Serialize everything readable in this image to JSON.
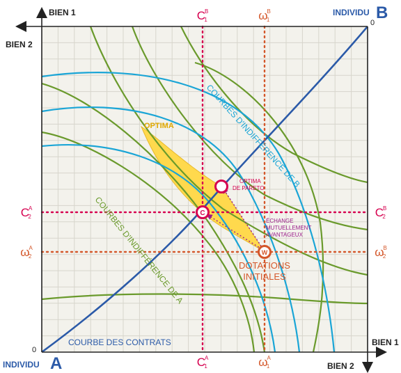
{
  "axes": {
    "a_good1": "BIEN 1",
    "a_good2": "BIEN 2",
    "b_good1": "BIEN 1",
    "b_good2": "BIEN 2",
    "origin_a": "0",
    "origin_b": "0"
  },
  "individuals": {
    "a_label": "INDIVIDU",
    "a_letter": "A",
    "b_label": "INDIVIDU",
    "b_letter": "B"
  },
  "curves": {
    "contract": "COURBE DES CONTRATS",
    "indiff_a": "COURBES D'INDIFFÉRENCE DE A",
    "indiff_b": "COURBES D'INDIFFÉRENCE DE B"
  },
  "regions": {
    "optima": "OPTIMA"
  },
  "points": {
    "pareto_line1": "OPTIMA",
    "pareto_line2": "DE PARETO",
    "c_letter": "C",
    "w_letter": "W",
    "dotations_line1": "DOTATIONS",
    "dotations_line2": "INITIALES",
    "exchange_line1": "ÉCHANGE",
    "exchange_line2": "MUTUELLEMENT",
    "exchange_line3": "AVANTAGEUX"
  },
  "markers": {
    "c_top": {
      "letter": "C",
      "sup": "B",
      "sub": "1"
    },
    "w_top": {
      "letter": "ω",
      "sup": "B",
      "sub": "1"
    },
    "c_bottom": {
      "letter": "C",
      "sup": "A",
      "sub": "1"
    },
    "w_bottom": {
      "letter": "ω",
      "sup": "A",
      "sub": "1"
    },
    "c_left": {
      "letter": "C",
      "sup": "A",
      "sub": "2"
    },
    "w_left": {
      "letter": "ω",
      "sup": "A",
      "sub": "2"
    },
    "c_right": {
      "letter": "C",
      "sup": "B",
      "sub": "2"
    },
    "w_right": {
      "letter": "ω",
      "sup": "B",
      "sub": "2"
    }
  },
  "colors": {
    "magenta": "#d6004f",
    "orange": "#d4572a",
    "blue": "#2b5aa8",
    "cyan": "#1aa5d6",
    "green": "#6a9a2c",
    "gold": "#ffd94d",
    "purple": "#9a1d8a"
  }
}
